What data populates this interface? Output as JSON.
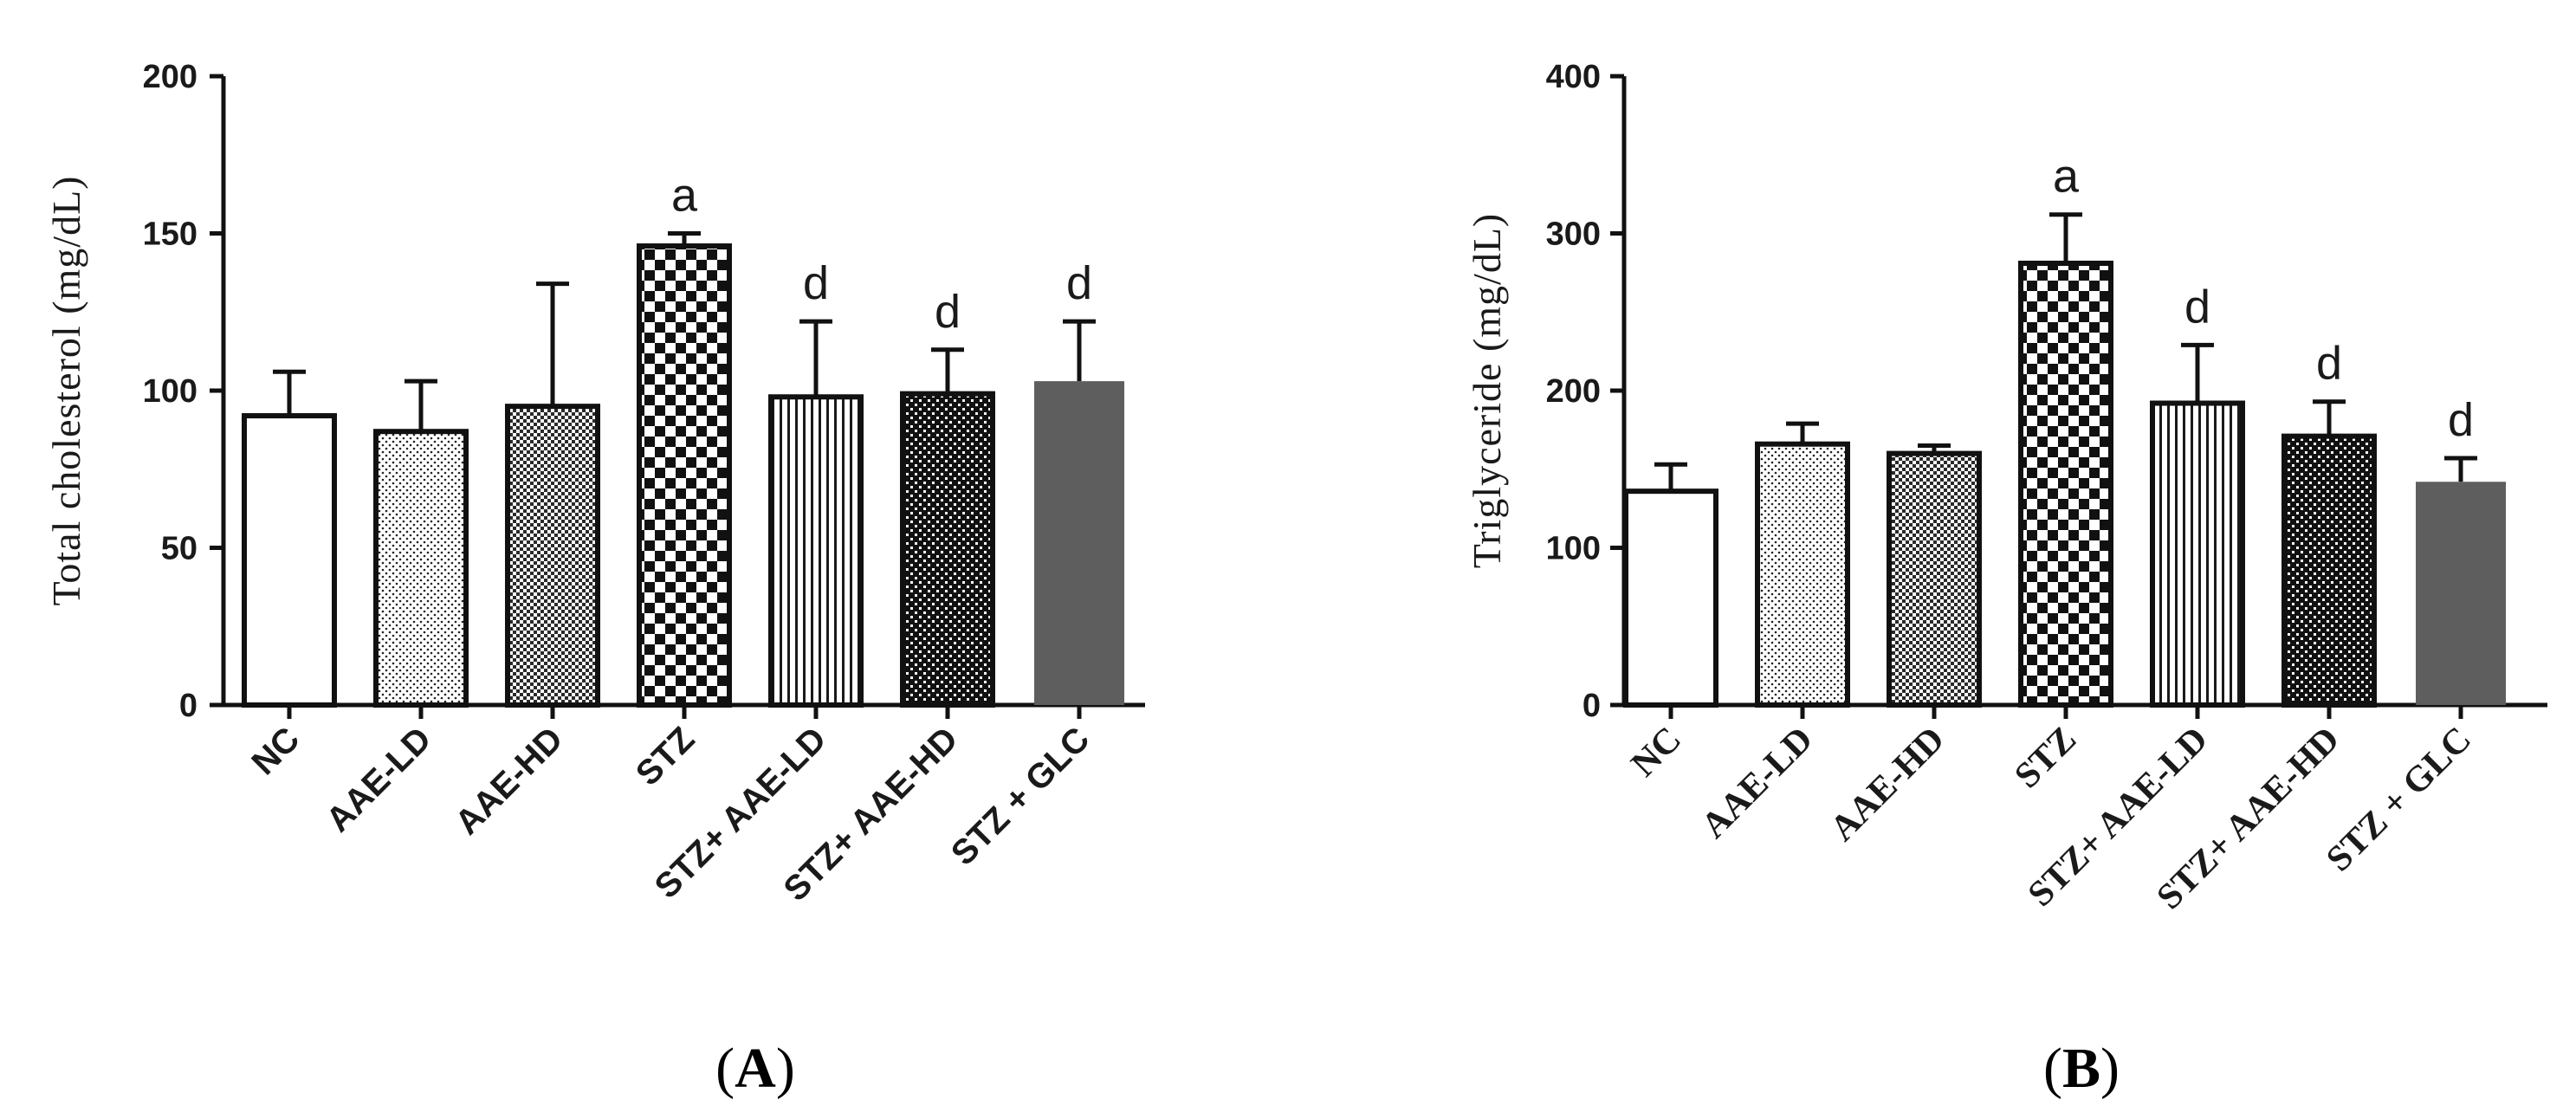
{
  "chart_data": [
    {
      "type": "bar",
      "panel": "A",
      "title": "",
      "xlabel": "",
      "ylabel": "Total cholesterol (mg/dL)",
      "ylim": [
        0,
        200
      ],
      "yticks": [
        0,
        50,
        100,
        150,
        200
      ],
      "categories": [
        "NC",
        "AAE-LD",
        "AAE-HD",
        "STZ",
        "STZ+ AAE-LD",
        "STZ+ AAE-HD",
        "STZ + GLC"
      ],
      "values": [
        92,
        87,
        95,
        146,
        98,
        99,
        103
      ],
      "errors": [
        14,
        16,
        39,
        4,
        24,
        14,
        19
      ],
      "significance": [
        "",
        "",
        "",
        "a",
        "d",
        "d",
        "d"
      ],
      "patterns": [
        "white",
        "dots",
        "fine-check",
        "checker",
        "vstripes",
        "dense-check",
        "solid-gray"
      ]
    },
    {
      "type": "bar",
      "panel": "B",
      "title": "",
      "xlabel": "",
      "ylabel": "Triglyceride (mg/dL)",
      "ylim": [
        0,
        400
      ],
      "yticks": [
        0,
        100,
        200,
        300,
        400
      ],
      "categories": [
        "NC",
        "AAE-LD",
        "AAE-HD",
        "STZ",
        "STZ+ AAE-LD",
        "STZ+ AAE-HD",
        "STZ + GLC"
      ],
      "values": [
        136,
        166,
        160,
        281,
        192,
        171,
        142
      ],
      "errors": [
        17,
        13,
        5,
        31,
        37,
        22,
        15
      ],
      "significance": [
        "",
        "",
        "",
        "a",
        "d",
        "d",
        "d"
      ],
      "patterns": [
        "white",
        "dots",
        "fine-check",
        "checker",
        "vstripes",
        "dense-check",
        "solid-gray"
      ]
    }
  ],
  "panels": [
    {
      "letter": "A",
      "open": "(",
      "close": ")"
    },
    {
      "letter": "B",
      "open": "(",
      "close": ")"
    }
  ],
  "colors": {
    "axis": "#111111",
    "bar_outline": "#111111",
    "solid_bar": "#5e5e5e"
  }
}
